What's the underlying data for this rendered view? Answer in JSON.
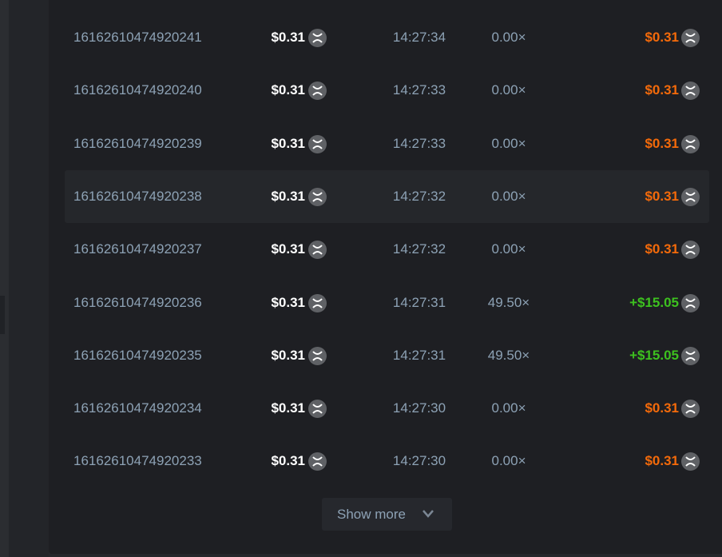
{
  "bets": [
    {
      "id": "16162610474920241",
      "amount": "$0.31",
      "time": "14:27:34",
      "multiplier": "0.00×",
      "payout": "$0.31",
      "result": "loss"
    },
    {
      "id": "16162610474920240",
      "amount": "$0.31",
      "time": "14:27:33",
      "multiplier": "0.00×",
      "payout": "$0.31",
      "result": "loss"
    },
    {
      "id": "16162610474920239",
      "amount": "$0.31",
      "time": "14:27:33",
      "multiplier": "0.00×",
      "payout": "$0.31",
      "result": "loss"
    },
    {
      "id": "16162610474920238",
      "amount": "$0.31",
      "time": "14:27:32",
      "multiplier": "0.00×",
      "payout": "$0.31",
      "result": "loss"
    },
    {
      "id": "16162610474920237",
      "amount": "$0.31",
      "time": "14:27:32",
      "multiplier": "0.00×",
      "payout": "$0.31",
      "result": "loss"
    },
    {
      "id": "16162610474920236",
      "amount": "$0.31",
      "time": "14:27:31",
      "multiplier": "49.50×",
      "payout": "+$15.05",
      "result": "win"
    },
    {
      "id": "16162610474920235",
      "amount": "$0.31",
      "time": "14:27:31",
      "multiplier": "49.50×",
      "payout": "+$15.05",
      "result": "win"
    },
    {
      "id": "16162610474920234",
      "amount": "$0.31",
      "time": "14:27:30",
      "multiplier": "0.00×",
      "payout": "$0.31",
      "result": "loss"
    },
    {
      "id": "16162610474920233",
      "amount": "$0.31",
      "time": "14:27:30",
      "multiplier": "0.00×",
      "payout": "$0.31",
      "result": "loss"
    }
  ],
  "currency_icon": "xrp-coin-icon",
  "colors": {
    "loss": "#f46a0a",
    "win": "#3dc11f",
    "text_muted": "#8da2b5",
    "panel": "#1e1f23"
  },
  "show_more_label": "Show more"
}
